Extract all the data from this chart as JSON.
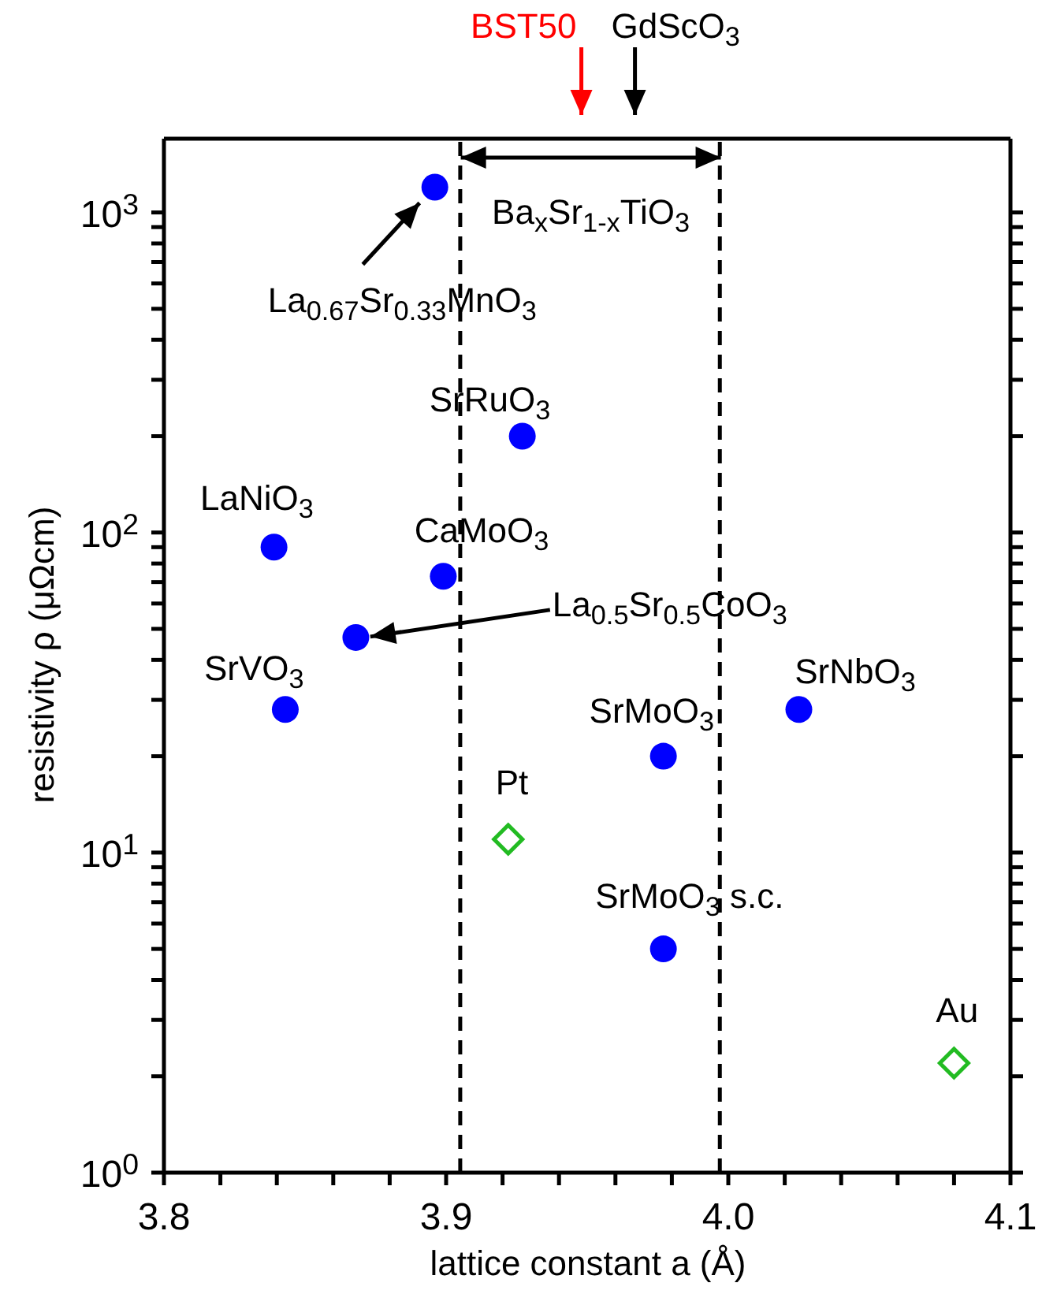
{
  "chart_data": {
    "type": "scatter",
    "xlabel": "lattice constant  a (Å)",
    "ylabel": "resistivity  ρ (μΩcm)",
    "log": "y",
    "grid": false,
    "legend": false,
    "xlim": [
      3.8,
      4.1
    ],
    "xticks": [
      {
        "value": 3.8,
        "label": "3.8"
      },
      {
        "value": 3.82,
        "label": null
      },
      {
        "value": 3.84,
        "label": null
      },
      {
        "value": 3.86,
        "label": null
      },
      {
        "value": 3.88,
        "label": null
      },
      {
        "value": 3.9,
        "label": "3.9"
      },
      {
        "value": 3.92,
        "label": null
      },
      {
        "value": 3.94,
        "label": null
      },
      {
        "value": 3.96,
        "label": null
      },
      {
        "value": 3.98,
        "label": null
      },
      {
        "value": 4.0,
        "label": "4.0"
      },
      {
        "value": 4.02,
        "label": null
      },
      {
        "value": 4.04,
        "label": null
      },
      {
        "value": 4.06,
        "label": null
      },
      {
        "value": 4.08,
        "label": null
      },
      {
        "value": 4.1,
        "label": "4.1"
      }
    ],
    "ylim": [
      1,
      1700
    ],
    "yticks": [
      {
        "value": 1,
        "label": "10$^{0}$"
      },
      {
        "value": 2,
        "label": null
      },
      {
        "value": 3,
        "label": null
      },
      {
        "value": 4,
        "label": null
      },
      {
        "value": 5,
        "label": null
      },
      {
        "value": 6,
        "label": null
      },
      {
        "value": 7,
        "label": null
      },
      {
        "value": 8,
        "label": null
      },
      {
        "value": 9,
        "label": null
      },
      {
        "value": 10,
        "label": "10$^{1}$"
      },
      {
        "value": 20,
        "label": null
      },
      {
        "value": 30,
        "label": null
      },
      {
        "value": 40,
        "label": null
      },
      {
        "value": 50,
        "label": null
      },
      {
        "value": 60,
        "label": null
      },
      {
        "value": 70,
        "label": null
      },
      {
        "value": 80,
        "label": null
      },
      {
        "value": 90,
        "label": null
      },
      {
        "value": 100,
        "label": "10$^{2}$"
      },
      {
        "value": 200,
        "label": null
      },
      {
        "value": 300,
        "label": null
      },
      {
        "value": 400,
        "label": null
      },
      {
        "value": 500,
        "label": null
      },
      {
        "value": 600,
        "label": null
      },
      {
        "value": 700,
        "label": null
      },
      {
        "value": 800,
        "label": null
      },
      {
        "value": 900,
        "label": null
      },
      {
        "value": 1000,
        "label": "10$^{3}$"
      }
    ],
    "series": [
      {
        "color": "#0000ff",
        "marker": "circle",
        "x": [
          3.896,
          3.927,
          3.839,
          3.899,
          3.868,
          3.843,
          4.025,
          3.977,
          3.977
        ],
        "values": [
          1200,
          200,
          90,
          73,
          47,
          28,
          28,
          20,
          5
        ]
      },
      {
        "color": "#22bb22",
        "marker": "diamond",
        "x": [
          3.922,
          4.08
        ],
        "values": [
          11,
          2.2
        ]
      }
    ],
    "ref_lines": [
      {
        "axis": "x",
        "value": 3.905,
        "label": null,
        "color": "#000000",
        "line_style": "dashed"
      },
      {
        "axis": "x",
        "value": 3.997,
        "label": null,
        "color": "#000000",
        "line_style": "dashed"
      }
    ],
    "annotations": [
      {
        "text": "La$_{0.67}$Sr$_{0.33}$MnO$_{3}$",
        "x": 3.896,
        "y": 1200
      },
      {
        "text": "SrRuO$_{3}$",
        "x": 3.927,
        "y": 200
      },
      {
        "text": "LaNiO$_{3}$",
        "x": 3.839,
        "y": 90
      },
      {
        "text": "CaMoO$_{3}$",
        "x": 3.899,
        "y": 73
      },
      {
        "text": "La$_{0.5}$Sr$_{0.5}$CoO$_{3}$",
        "x": 3.873,
        "y": 47
      },
      {
        "text": "SrVO$_{3}$",
        "x": 3.843,
        "y": 28
      },
      {
        "text": "SrNbO$_{3}$",
        "x": 4.025,
        "y": 28
      },
      {
        "text": "SrMoO$_{3}$",
        "x": 3.977,
        "y": 20
      },
      {
        "text": "SrMoO$_{3}$ s.c.",
        "x": 3.977,
        "y": 5
      },
      {
        "text": "Pt",
        "x": 3.922,
        "y": 11
      },
      {
        "text": "Au",
        "x": 4.08,
        "y": 2.2
      },
      "Ba$_{x}$Sr$_{1-x}$TiO$_{3}$",
      "BST50",
      "GdScO$_{3}$"
    ]
  }
}
